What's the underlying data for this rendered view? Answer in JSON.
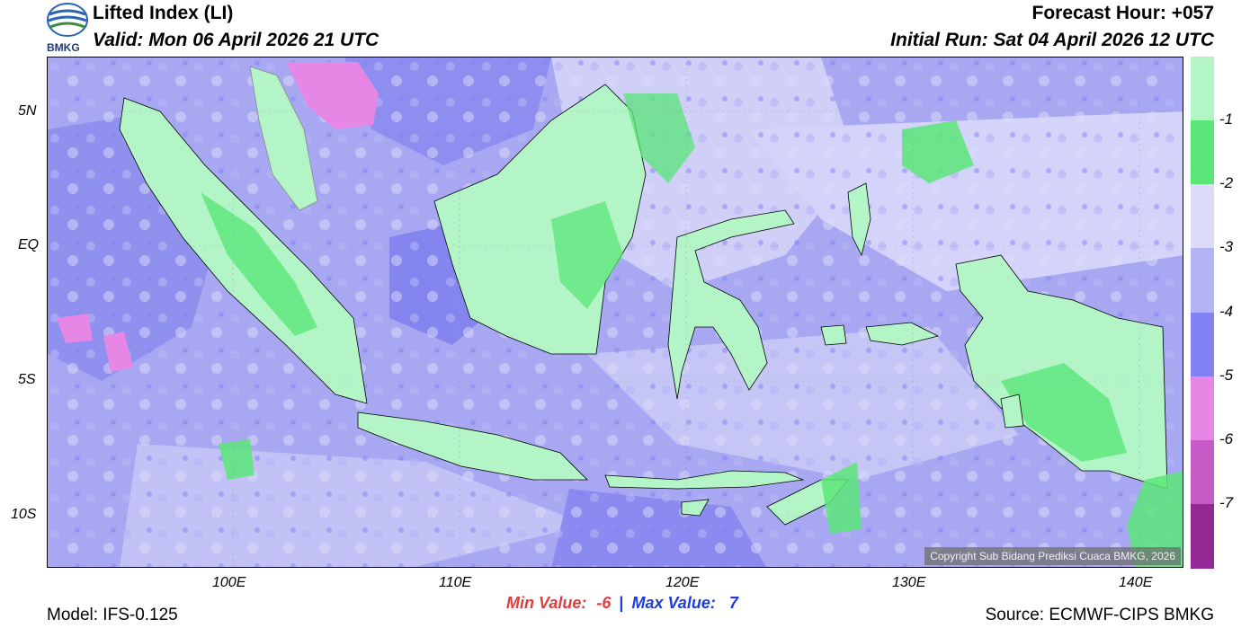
{
  "header": {
    "logo_text": "BMKG",
    "title": "Lifted Index (LI)",
    "valid": "Valid: Mon 06 April 2026 21 UTC",
    "forecast_hour": "Forecast Hour: +057",
    "initial_run": "Initial Run: Sat 04 April 2026 12 UTC"
  },
  "map": {
    "lat_ticks": [
      "5N",
      "EQ",
      "5S",
      "10S"
    ],
    "lon_ticks": [
      "100E",
      "110E",
      "120E",
      "130E",
      "140E"
    ],
    "copyright": "Copyright Sub Bidang Prediksi Cuaca BMKG, 2026",
    "colors": {
      "li_lt_-1": "#b4f5c8",
      "li_-1_-2": "#5ae678",
      "li_-2_-3": "#dcdcfa",
      "li_-3_-4": "#b4b4f5",
      "li_-4_-5": "#8282f5",
      "li_-5_-6": "#e687e6",
      "li_-6_-7": "#c85ac8",
      "li_lt_-7": "#962896"
    }
  },
  "legend": {
    "labels": [
      "-1",
      "-2",
      "-3",
      "-4",
      "-5",
      "-6",
      "-7"
    ],
    "colors": [
      "#b4f5c8",
      "#5ae678",
      "#dcdcfa",
      "#b4b4f5",
      "#8282f5",
      "#e687e6",
      "#c85ac8",
      "#962896"
    ]
  },
  "footer": {
    "model": "Model: IFS-0.125",
    "min_label": "Min Value:",
    "min_value": "-6",
    "separator": "|",
    "max_label": "Max Value:",
    "max_value": "7",
    "source": "Source: ECMWF-CIPS BMKG"
  }
}
